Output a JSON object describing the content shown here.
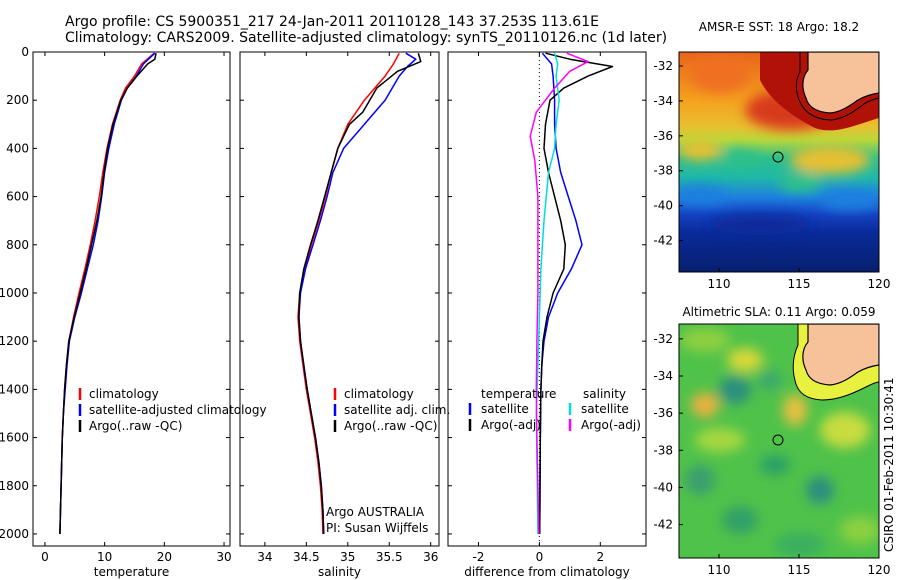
{
  "header": {
    "line1": "Argo profile: CS 5900351_217 24-Jan-2011 20110128_143 37.253S 113.61E",
    "line2": "Climatology: CARS2009. Satellite-adjusted climatology: synTS_20110126.nc (1d later)"
  },
  "side_label": "CSIRO 01-Feb-2011 10:30:41",
  "chart_data": [
    {
      "id": "temperature",
      "type": "line",
      "xlabel": "temperature",
      "ylabel": "",
      "xlim": [
        -2,
        31
      ],
      "ylim": [
        2050,
        0
      ],
      "xticks": [
        0,
        10,
        20,
        30
      ],
      "yticks": [
        0,
        200,
        400,
        600,
        800,
        1000,
        1200,
        1400,
        1600,
        1800,
        2000
      ],
      "legend": {
        "position": "bottom-right",
        "entries": [
          "climatology",
          "satellite-adjusted climatology",
          "Argo(..raw -QC)"
        ]
      },
      "series": [
        {
          "name": "climatology",
          "color": "#ff0000",
          "depth": [
            5,
            50,
            100,
            150,
            200,
            300,
            400,
            500,
            600,
            700,
            800,
            900,
            1000,
            1100,
            1200,
            1300,
            1400,
            1500,
            1600,
            1700,
            1800,
            1900,
            2000
          ],
          "values": [
            18.3,
            16.2,
            15.0,
            13.5,
            12.6,
            11.3,
            10.4,
            9.7,
            9.1,
            8.4,
            7.6,
            6.7,
            5.7,
            4.8,
            4.0,
            3.6,
            3.3,
            3.1,
            2.9,
            2.8,
            2.7,
            2.6,
            2.5
          ]
        },
        {
          "name": "satellite-adjusted climatology",
          "color": "#0000ff",
          "depth": [
            5,
            50,
            100,
            150,
            200,
            300,
            400,
            500,
            600,
            700,
            800,
            900,
            1000,
            1100,
            1200,
            1300,
            1400,
            1500,
            1600,
            1700,
            1800,
            1900,
            2000
          ],
          "values": [
            18.4,
            16.5,
            15.3,
            13.8,
            12.8,
            11.6,
            10.7,
            10.0,
            9.5,
            8.9,
            8.1,
            7.1,
            6.1,
            5.0,
            4.1,
            3.7,
            3.4,
            3.1,
            2.9,
            2.8,
            2.7,
            2.6,
            2.5
          ]
        },
        {
          "name": "Argo(..raw -QC)",
          "color": "#000000",
          "depth": [
            5,
            30,
            50,
            100,
            150,
            200,
            300,
            400,
            500,
            600,
            700,
            800,
            900,
            1000,
            1100,
            1200,
            1300,
            1400,
            1500,
            1600,
            1700,
            1800,
            1900,
            2000
          ],
          "values": [
            18.6,
            18.4,
            17.2,
            15.4,
            13.8,
            12.7,
            11.4,
            10.5,
            9.9,
            9.4,
            8.7,
            7.8,
            6.9,
            5.9,
            4.9,
            4.0,
            3.6,
            3.3,
            3.1,
            2.9,
            2.8,
            2.7,
            2.6,
            2.5
          ]
        }
      ]
    },
    {
      "id": "salinity",
      "type": "line",
      "xlabel": "salinity",
      "ylabel": "",
      "xlim": [
        33.7,
        36.1
      ],
      "ylim": [
        2050,
        0
      ],
      "xticks": [
        34,
        34.5,
        35,
        35.5,
        36
      ],
      "legend": {
        "position": "bottom-right",
        "entries": [
          "climatology",
          "satellite adj. clim.",
          "Argo(..raw -QC)"
        ]
      },
      "annotations": [
        "Argo AUSTRALIA",
        "PI: Susan Wijffels"
      ],
      "series": [
        {
          "name": "climatology",
          "color": "#ff0000",
          "depth": [
            5,
            50,
            100,
            200,
            300,
            400,
            500,
            600,
            700,
            800,
            900,
            1000,
            1100,
            1200,
            1300,
            1400,
            1500,
            1600,
            1700,
            1800,
            1900,
            2000
          ],
          "values": [
            35.62,
            35.55,
            35.45,
            35.2,
            35.0,
            34.88,
            34.8,
            34.73,
            34.65,
            34.56,
            34.48,
            34.42,
            34.4,
            34.42,
            34.46,
            34.5,
            34.55,
            34.6,
            34.64,
            34.67,
            34.69,
            34.7
          ]
        },
        {
          "name": "satellite adj. clim.",
          "color": "#0000ff",
          "depth": [
            5,
            30,
            60,
            100,
            200,
            300,
            400,
            500,
            600,
            700,
            800,
            900,
            1000,
            1100,
            1200,
            1300,
            1400,
            1500,
            1600,
            1700,
            1800,
            1900,
            2000
          ],
          "values": [
            35.7,
            35.82,
            35.72,
            35.62,
            35.45,
            35.2,
            34.95,
            34.82,
            34.75,
            34.67,
            34.58,
            34.49,
            34.43,
            34.41,
            34.43,
            34.47,
            34.51,
            34.56,
            34.61,
            34.65,
            34.68,
            34.7,
            34.71
          ]
        },
        {
          "name": "Argo(..raw -QC)",
          "color": "#000000",
          "depth": [
            5,
            40,
            80,
            150,
            250,
            300,
            350,
            400,
            500,
            600,
            700,
            800,
            900,
            1000,
            1100,
            1200,
            1300,
            1400,
            1500,
            1600,
            1700,
            1800,
            1900,
            2000
          ],
          "values": [
            35.85,
            35.88,
            35.6,
            35.35,
            35.18,
            35.02,
            34.95,
            34.88,
            34.8,
            34.72,
            34.64,
            34.55,
            34.47,
            34.42,
            34.41,
            34.43,
            34.47,
            34.51,
            34.56,
            34.61,
            34.65,
            34.68,
            34.7,
            34.71
          ]
        }
      ]
    },
    {
      "id": "difference",
      "type": "line",
      "xlabel": "difference from climatology",
      "ylabel": "",
      "xlim": [
        -3,
        3.5
      ],
      "ylim": [
        2050,
        0
      ],
      "xticks": [
        -2,
        0,
        2
      ],
      "legend": {
        "position": "bottom",
        "groups": [
          "temperature",
          "salinity"
        ],
        "entries": [
          "satellite",
          "Argo(-adj)",
          "satellite",
          "Argo(-adj)"
        ]
      },
      "series": [
        {
          "name": "temperature satellite",
          "color": "#0000ff",
          "depth": [
            5,
            50,
            100,
            200,
            300,
            400,
            500,
            600,
            700,
            800,
            900,
            1000,
            1100,
            1200,
            1300,
            1400,
            1600,
            1800,
            2000
          ],
          "values": [
            0.1,
            0.4,
            0.45,
            0.5,
            0.5,
            0.55,
            0.7,
            0.95,
            1.2,
            1.4,
            1.05,
            0.6,
            0.3,
            0.15,
            0.08,
            0.05,
            0.03,
            0.02,
            0.01
          ]
        },
        {
          "name": "temperature Argo(-adj)",
          "color": "#000000",
          "depth": [
            5,
            30,
            60,
            100,
            150,
            200,
            300,
            400,
            500,
            600,
            700,
            800,
            900,
            1000,
            1100,
            1200,
            1300,
            1400,
            1600,
            1800,
            2000
          ],
          "values": [
            0.2,
            1.0,
            2.4,
            1.6,
            0.8,
            0.35,
            0.2,
            0.15,
            0.3,
            0.5,
            0.7,
            0.85,
            0.8,
            0.45,
            0.25,
            0.12,
            0.08,
            0.05,
            0.03,
            0.02,
            0.01
          ]
        },
        {
          "name": "salinity satellite",
          "color": "#00dddd",
          "depth": [
            5,
            50,
            100,
            200,
            300,
            400,
            500,
            700,
            900,
            1100,
            1300,
            1500,
            2000
          ],
          "values": [
            0.5,
            0.6,
            0.55,
            0.65,
            0.55,
            0.5,
            0.3,
            0.15,
            0.05,
            0.0,
            -0.05,
            -0.1,
            -0.05
          ]
        },
        {
          "name": "salinity Argo(-adj)",
          "color": "#ff00ff",
          "depth": [
            5,
            40,
            80,
            150,
            250,
            350,
            450,
            600,
            800,
            1000,
            1200,
            1400,
            1600,
            1800,
            2000
          ],
          "values": [
            0.9,
            1.6,
            1.0,
            0.5,
            -0.1,
            -0.3,
            -0.15,
            -0.05,
            -0.05,
            -0.05,
            -0.08,
            -0.1,
            -0.08,
            -0.05,
            -0.02
          ]
        }
      ]
    },
    {
      "id": "sst-map",
      "type": "heatmap",
      "title": "AMSR-E SST: 18 Argo: 18.2",
      "xlim": [
        107.5,
        120
      ],
      "ylim": [
        -43.8,
        -31.2
      ],
      "xticks": [
        110,
        115,
        120
      ],
      "yticks": [
        -32,
        -34,
        -36,
        -38,
        -40,
        -42
      ],
      "marker": {
        "lon": 113.61,
        "lat": -37.25
      }
    },
    {
      "id": "sla-map",
      "type": "heatmap",
      "title": "Altimetric SLA: 0.11 Argo: 0.059",
      "xlim": [
        107.5,
        120
      ],
      "ylim": [
        -43.8,
        -31.2
      ],
      "xticks": [
        110,
        115,
        120
      ],
      "yticks": [
        -32,
        -34,
        -36,
        -38,
        -40,
        -42
      ],
      "marker": {
        "lon": 113.61,
        "lat": -37.25
      }
    }
  ]
}
